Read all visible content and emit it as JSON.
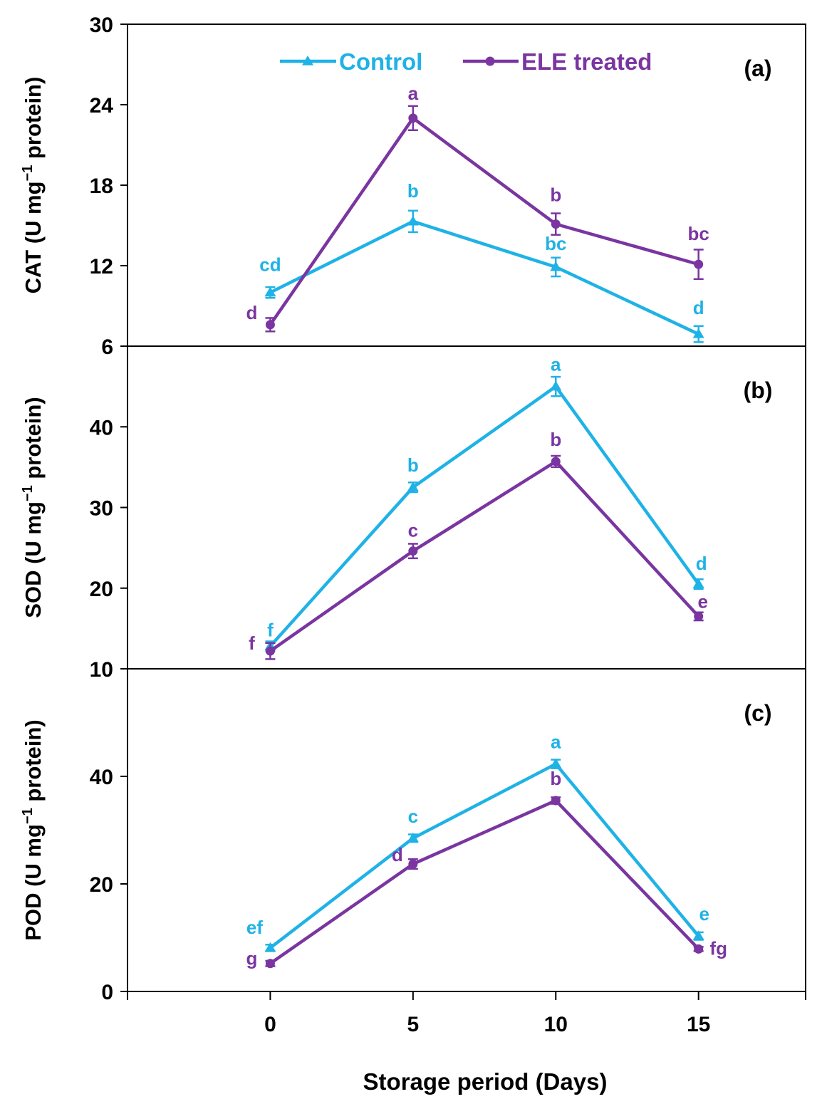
{
  "colors": {
    "control": "#1fb2e6",
    "ele": "#7a35a0",
    "axis": "#000000"
  },
  "xaxis": {
    "label": "Storage period (Days)",
    "ticks": [
      0,
      5,
      10,
      15
    ],
    "range": [
      -5,
      18.75
    ]
  },
  "legend": {
    "control": "Control",
    "ele": "ELE treated"
  },
  "chart_data": [
    {
      "type": "line",
      "panel_label": "(a)",
      "ylabel": {
        "main": "CAT (U mg",
        "sup": "−1",
        "tail": " protein)"
      },
      "ylim": [
        6,
        30
      ],
      "yticks": [
        6,
        12,
        18,
        24,
        30
      ],
      "x": [
        0,
        5,
        10,
        15
      ],
      "series": [
        {
          "name": "Control",
          "key": "control",
          "marker": "triangle",
          "values": [
            10.0,
            15.3,
            11.9,
            6.9
          ],
          "errors": [
            0.4,
            0.8,
            0.7,
            0.6
          ],
          "letters": [
            "cd",
            "b",
            "bc",
            "d"
          ]
        },
        {
          "name": "ELE treated",
          "key": "ele",
          "marker": "circle",
          "values": [
            7.6,
            23.0,
            15.1,
            12.1
          ],
          "errors": [
            0.5,
            0.9,
            0.8,
            1.1
          ],
          "letters": [
            "d",
            "a",
            "b",
            "bc"
          ]
        }
      ]
    },
    {
      "type": "line",
      "panel_label": "(b)",
      "ylabel": {
        "main": "SOD (U mg",
        "sup": "−1",
        "tail": " protein)"
      },
      "ylim": [
        10,
        50
      ],
      "yticks": [
        10,
        20,
        30,
        40
      ],
      "x": [
        0,
        5,
        10,
        15
      ],
      "series": [
        {
          "name": "Control",
          "key": "control",
          "marker": "triangle",
          "values": [
            12.8,
            32.5,
            45.0,
            20.5
          ],
          "errors": [
            0.6,
            0.6,
            1.2,
            0.6
          ],
          "letters": [
            "f",
            "b",
            "a",
            "d"
          ]
        },
        {
          "name": "ELE treated",
          "key": "ele",
          "marker": "circle",
          "values": [
            12.2,
            24.6,
            35.7,
            16.5
          ],
          "errors": [
            1.0,
            0.9,
            0.7,
            0.5
          ],
          "letters": [
            "f",
            "c",
            "b",
            "e"
          ]
        }
      ]
    },
    {
      "type": "line",
      "panel_label": "(c)",
      "ylabel": {
        "main": "POD (U mg",
        "sup": "−1",
        "tail": " protein)"
      },
      "ylim": [
        0,
        60
      ],
      "yticks": [
        0,
        20,
        40
      ],
      "x": [
        0,
        5,
        10,
        15
      ],
      "series": [
        {
          "name": "Control",
          "key": "control",
          "marker": "triangle",
          "values": [
            8.1,
            28.5,
            42.3,
            10.3
          ],
          "errors": [
            0.6,
            0.7,
            0.8,
            0.7
          ],
          "letters": [
            "ef",
            "c",
            "a",
            "e"
          ]
        },
        {
          "name": "ELE treated",
          "key": "ele",
          "marker": "circle",
          "values": [
            5.2,
            23.7,
            35.5,
            7.9
          ],
          "errors": [
            0.5,
            0.9,
            0.6,
            0.4
          ],
          "letters": [
            "g",
            "d",
            "b",
            "fg"
          ]
        }
      ]
    }
  ]
}
